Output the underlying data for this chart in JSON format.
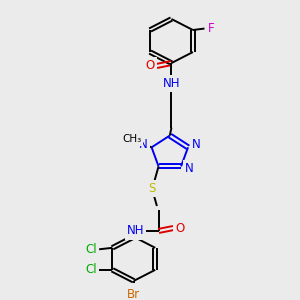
{
  "background_color": "#ebebeb",
  "figsize": [
    3.0,
    3.0
  ],
  "dpi": 100,
  "colors": {
    "C": "#000000",
    "N": "#0000ee",
    "O": "#dd0000",
    "S": "#bbbb00",
    "F": "#cc00cc",
    "Cl": "#00aa00",
    "Br": "#cc6600",
    "H": "#000000",
    "bond": "#000000"
  },
  "layout": {
    "xlim": [
      0.0,
      1.0
    ],
    "ylim": [
      0.0,
      1.0
    ]
  }
}
